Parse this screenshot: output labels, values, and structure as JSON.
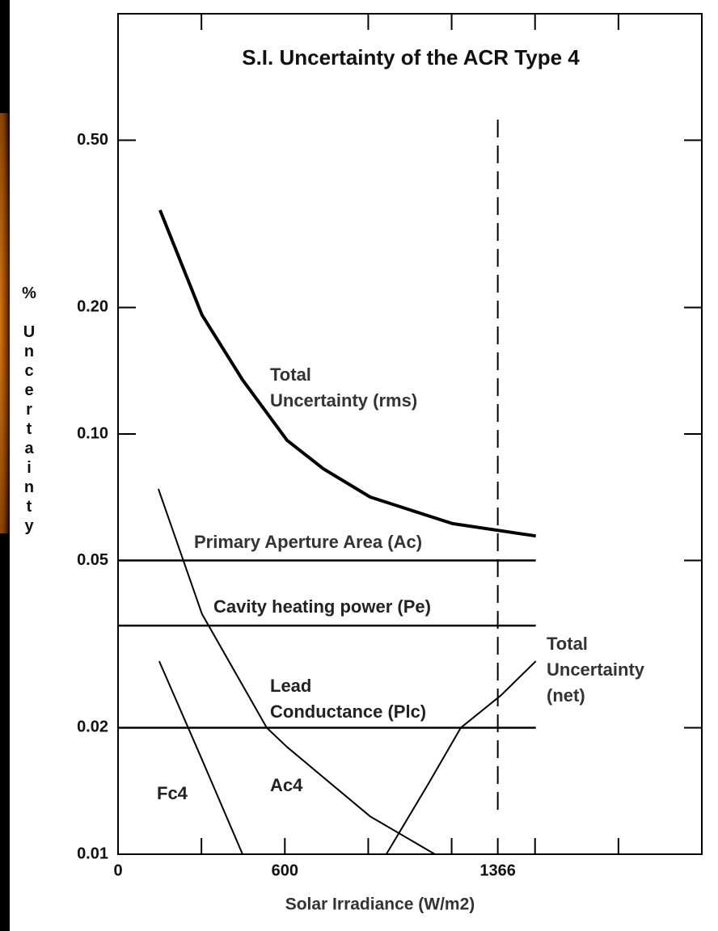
{
  "chart_data": {
    "type": "line",
    "title": "S.I. Uncertainty of the ACR Type 4",
    "x_label": "Solar Irradiance (W/m2)",
    "y_label": "% Uncertainty",
    "log_y": true,
    "xlim": [
      0,
      2100
    ],
    "xticks": [
      0,
      600,
      1366
    ],
    "x_minor_ticks": [
      300,
      900,
      1200,
      1500,
      1800
    ],
    "ylim": [
      0.01,
      1
    ],
    "yticks": [
      0.01,
      {
        "value": 0.02,
        "label": "0.02"
      },
      {
        "value": 0.05,
        "label": "0.05"
      },
      {
        "value": 0.1,
        "label": "0.10"
      },
      {
        "value": 0.2,
        "label": "0.20"
      },
      {
        "value": 0.5,
        "label": "0.50"
      }
    ],
    "vline": 1366,
    "series": [
      {
        "color": "#000000",
        "line_width": 4,
        "x": [
          151,
          302,
          448,
          608,
          738,
          907,
          1203,
          1503
        ],
        "values": [
          0.341,
          0.192,
          0.1345,
          0.0966,
          0.0827,
          0.0708,
          0.0612,
          0.0572
        ]
      },
      {
        "color": "#000000",
        "line_width": 2.5,
        "x": [
          0,
          1503
        ],
        "values": [
          0.05,
          0.05
        ]
      },
      {
        "color": "#000000",
        "line_width": 2.5,
        "x": [
          0,
          1503
        ],
        "values": [
          0.035,
          0.035
        ]
      },
      {
        "color": "#000000",
        "line_width": 2.5,
        "x": [
          0,
          1503
        ],
        "values": [
          0.02,
          0.02
        ]
      },
      {
        "color": "#000000",
        "line_width": 2,
        "x": [
          145,
          302,
          535,
          608,
          907,
          1140
        ],
        "values": [
          0.074,
          0.0373,
          0.02,
          0.018,
          0.0123,
          0.01
        ]
      },
      {
        "color": "#000000",
        "line_width": 2,
        "x": [
          148,
          302,
          448
        ],
        "values": [
          0.0288,
          0.0168,
          0.01
        ]
      },
      {
        "color": "#000000",
        "line_width": 2,
        "x": [
          965,
          1116,
          1233,
          1378,
          1503
        ],
        "values": [
          0.01,
          0.0147,
          0.02,
          0.0239,
          0.0288
        ]
      }
    ],
    "annotations": [
      "Total",
      "Uncertainty (rms)",
      "Primary Aperture Area (Ac)",
      "Cavity heating power (Pe)",
      "Lead",
      "Conductance (Plc)",
      "Total",
      "Uncertainty",
      "(net)",
      "Fc4",
      "Ac4"
    ]
  }
}
